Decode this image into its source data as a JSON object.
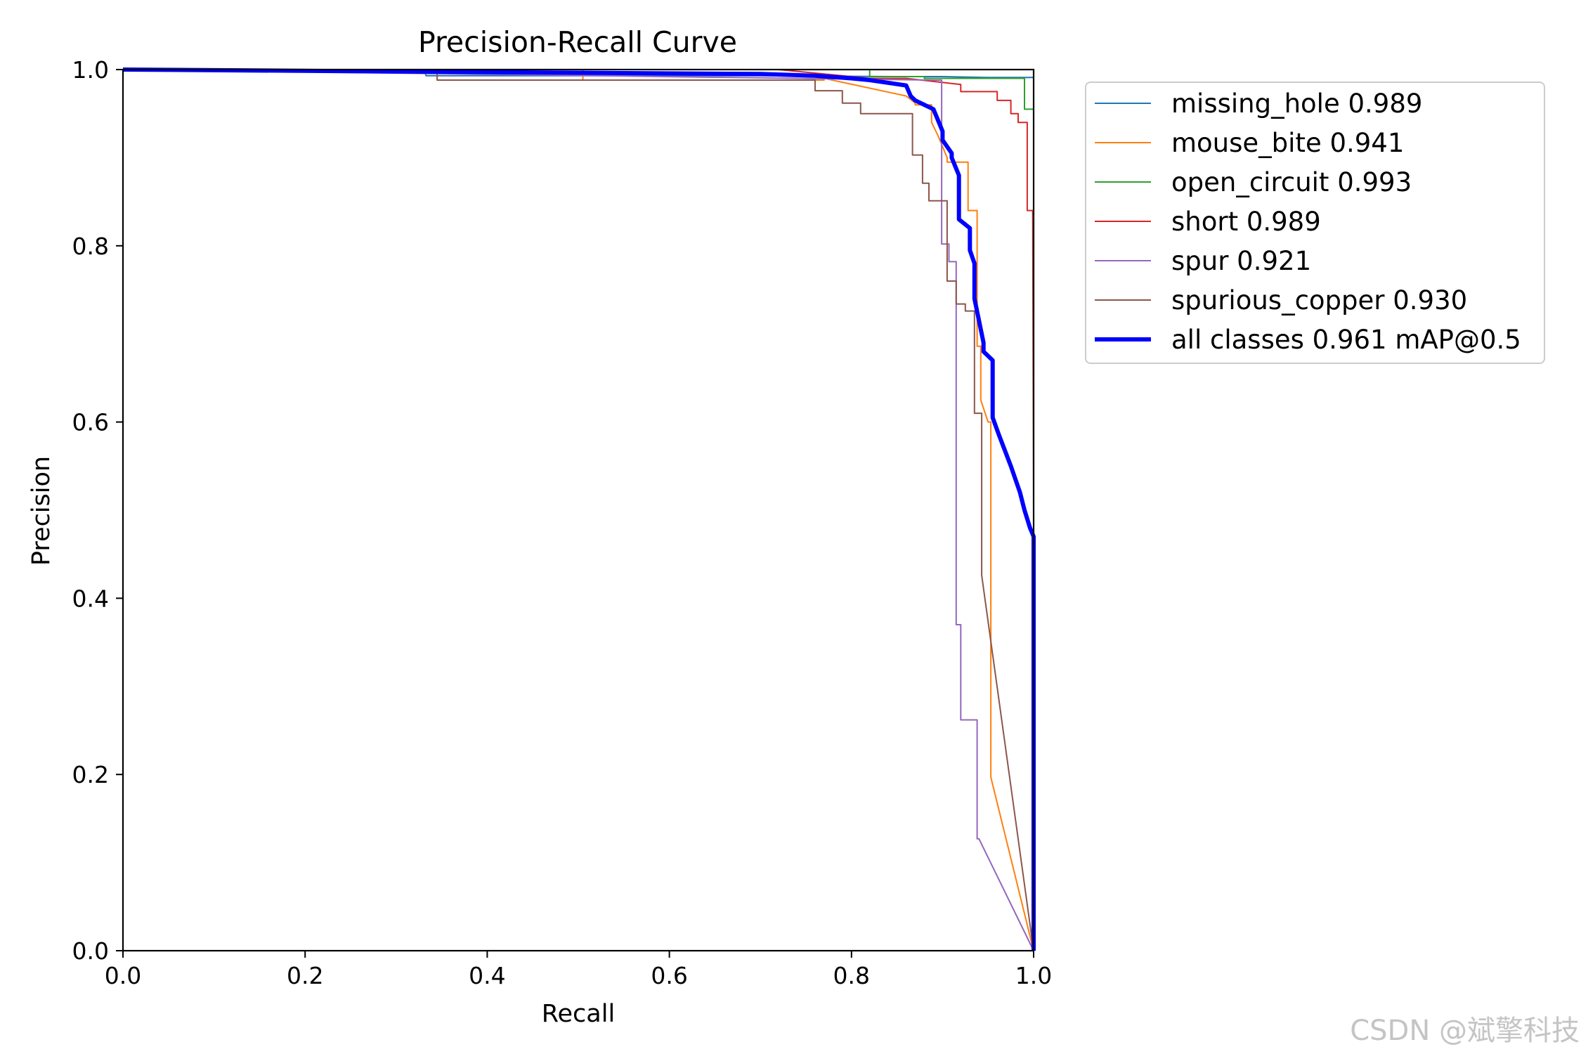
{
  "chart_data": {
    "type": "line",
    "title": "Precision-Recall Curve",
    "xlabel": "Recall",
    "ylabel": "Precision",
    "xlim": [
      0,
      1
    ],
    "ylim": [
      0,
      1
    ],
    "xticks": [
      "0.0",
      "0.2",
      "0.4",
      "0.6",
      "0.8",
      "1.0"
    ],
    "yticks": [
      "0.0",
      "0.2",
      "0.4",
      "0.6",
      "0.8",
      "1.0"
    ],
    "grid": false,
    "legend_position": "outside-top-right",
    "series": [
      {
        "name": "missing_hole 0.989",
        "color": "#1f77b4",
        "width": 2,
        "x": [
          0,
          0.33,
          0.333,
          0.345,
          0.7,
          0.85,
          0.9,
          0.95,
          0.995,
          0.999,
          1.0,
          1.0
        ],
        "y": [
          1.0,
          1.0,
          0.993,
          0.993,
          0.993,
          0.992,
          0.992,
          0.991,
          0.991,
          0.991,
          0.991,
          0.0
        ]
      },
      {
        "name": "mouse_bite 0.941",
        "color": "#ff7f0e",
        "width": 2,
        "x": [
          0,
          0.505,
          0.505,
          0.77,
          0.77,
          0.86,
          0.87,
          0.87,
          0.888,
          0.888,
          0.895,
          0.905,
          0.905,
          0.928,
          0.928,
          0.938,
          0.938,
          0.942,
          0.942,
          0.95,
          0.953,
          0.953,
          1.0
        ],
        "y": [
          1.0,
          1.0,
          0.988,
          0.988,
          0.99,
          0.97,
          0.962,
          0.96,
          0.96,
          0.94,
          0.925,
          0.9,
          0.895,
          0.895,
          0.84,
          0.84,
          0.686,
          0.686,
          0.625,
          0.6,
          0.6,
          0.197,
          0.0
        ]
      },
      {
        "name": "open_circuit 0.993",
        "color": "#2ca02c",
        "width": 2,
        "x": [
          0,
          0.82,
          0.82,
          0.88,
          0.88,
          0.99,
          0.99,
          1.0,
          1.0,
          1.0
        ],
        "y": [
          1.0,
          1.0,
          0.992,
          0.992,
          0.99,
          0.99,
          0.955,
          0.955,
          0.84,
          0.0
        ]
      },
      {
        "name": "short 0.989",
        "color": "#d62728",
        "width": 2,
        "x": [
          0,
          0.72,
          0.82,
          0.86,
          0.92,
          0.92,
          0.96,
          0.96,
          0.975,
          0.975,
          0.983,
          0.983,
          0.993,
          0.993,
          0.999,
          1.0,
          1.0
        ],
        "y": [
          1.0,
          1.0,
          0.99,
          0.99,
          0.983,
          0.975,
          0.975,
          0.965,
          0.965,
          0.95,
          0.95,
          0.94,
          0.94,
          0.84,
          0.84,
          0.5,
          0.0
        ]
      },
      {
        "name": "spur 0.921",
        "color": "#9467bd",
        "width": 2,
        "x": [
          0,
          0.89,
          0.899,
          0.899,
          0.907,
          0.907,
          0.915,
          0.915,
          0.92,
          0.92,
          0.93,
          0.93,
          0.938,
          0.938,
          0.94,
          1.0
        ],
        "y": [
          1.0,
          0.988,
          0.988,
          0.802,
          0.802,
          0.782,
          0.782,
          0.37,
          0.37,
          0.262,
          0.262,
          0.262,
          0.262,
          0.127,
          0.127,
          0.0
        ]
      },
      {
        "name": "spurious_copper 0.930",
        "color": "#8c564b",
        "width": 2,
        "x": [
          0,
          0.345,
          0.345,
          0.76,
          0.76,
          0.79,
          0.79,
          0.81,
          0.81,
          0.82,
          0.82,
          0.867,
          0.867,
          0.878,
          0.878,
          0.885,
          0.885,
          0.905,
          0.905,
          0.915,
          0.915,
          0.925,
          0.925,
          0.935,
          0.935,
          0.943,
          0.943,
          1.0
        ],
        "y": [
          1.0,
          1.0,
          0.988,
          0.988,
          0.976,
          0.976,
          0.962,
          0.962,
          0.95,
          0.95,
          0.95,
          0.95,
          0.903,
          0.903,
          0.871,
          0.871,
          0.851,
          0.851,
          0.76,
          0.76,
          0.734,
          0.734,
          0.726,
          0.726,
          0.61,
          0.61,
          0.426,
          0.0
        ]
      },
      {
        "name": "all classes 0.961 mAP@0.5",
        "color": "#0000ff",
        "width": 6,
        "x": [
          0,
          0.7,
          0.76,
          0.8,
          0.82,
          0.84,
          0.86,
          0.865,
          0.87,
          0.88,
          0.89,
          0.9,
          0.9,
          0.91,
          0.91,
          0.918,
          0.918,
          0.93,
          0.93,
          0.935,
          0.935,
          0.945,
          0.945,
          0.955,
          0.955,
          0.962,
          0.975,
          0.985,
          0.99,
          0.993,
          0.996,
          1.0,
          1.0
        ],
        "y": [
          1.0,
          0.995,
          0.993,
          0.99,
          0.988,
          0.985,
          0.982,
          0.97,
          0.965,
          0.96,
          0.955,
          0.93,
          0.92,
          0.905,
          0.9,
          0.88,
          0.83,
          0.82,
          0.795,
          0.78,
          0.74,
          0.69,
          0.68,
          0.67,
          0.605,
          0.585,
          0.55,
          0.52,
          0.5,
          0.49,
          0.48,
          0.47,
          0.0
        ]
      }
    ]
  },
  "watermark": "CSDN @斌擎科技"
}
